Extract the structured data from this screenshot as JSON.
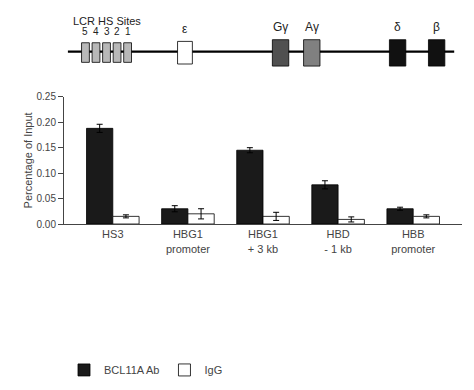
{
  "chart_data": {
    "type": "bar",
    "categories": [
      "HS3",
      "HBG1\npromoter",
      "HBG1\n+ 3 kb",
      "HBD\n- 1 kb",
      "HBB\npromoter"
    ],
    "series": [
      {
        "name": "BCL11A Ab",
        "color": "#1a1a1a",
        "values": [
          0.188,
          0.03,
          0.145,
          0.077,
          0.03
        ],
        "errors": [
          0.008,
          0.006,
          0.005,
          0.008,
          0.003
        ]
      },
      {
        "name": "IgG",
        "color": "#ffffff",
        "values": [
          0.015,
          0.02,
          0.015,
          0.009,
          0.015
        ],
        "errors": [
          0.003,
          0.01,
          0.008,
          0.005,
          0.003
        ]
      }
    ],
    "ylabel": "Percentage of Input",
    "ylim": [
      0,
      0.25
    ],
    "yticks": [
      {
        "value": 0,
        "label": "0.00"
      },
      0.05,
      {
        "value": 0.1,
        "label": "0.10"
      },
      0.15,
      {
        "value": 0.2,
        "label": "0.20"
      },
      0.25
    ],
    "grid": false,
    "legend": "bottom",
    "annotations": [
      {
        "text": "LCR HS Sites"
      },
      {
        "text": "5",
        "color": "#b8b8b8"
      },
      {
        "text": "4",
        "color": "#b8b8b8"
      },
      {
        "text": "3",
        "color": "#b8b8b8"
      },
      {
        "text": "2",
        "color": "#b8b8b8"
      },
      {
        "text": "1",
        "color": "#b8b8b8"
      },
      {
        "text": "ε",
        "color": "#ffffff"
      },
      {
        "text": "Gγ",
        "color": "#505050"
      },
      {
        "text": "Aγ",
        "color": "#808080"
      },
      {
        "text": "δ",
        "color": "#111111"
      },
      {
        "text": "β",
        "color": "#111111"
      }
    ]
  }
}
